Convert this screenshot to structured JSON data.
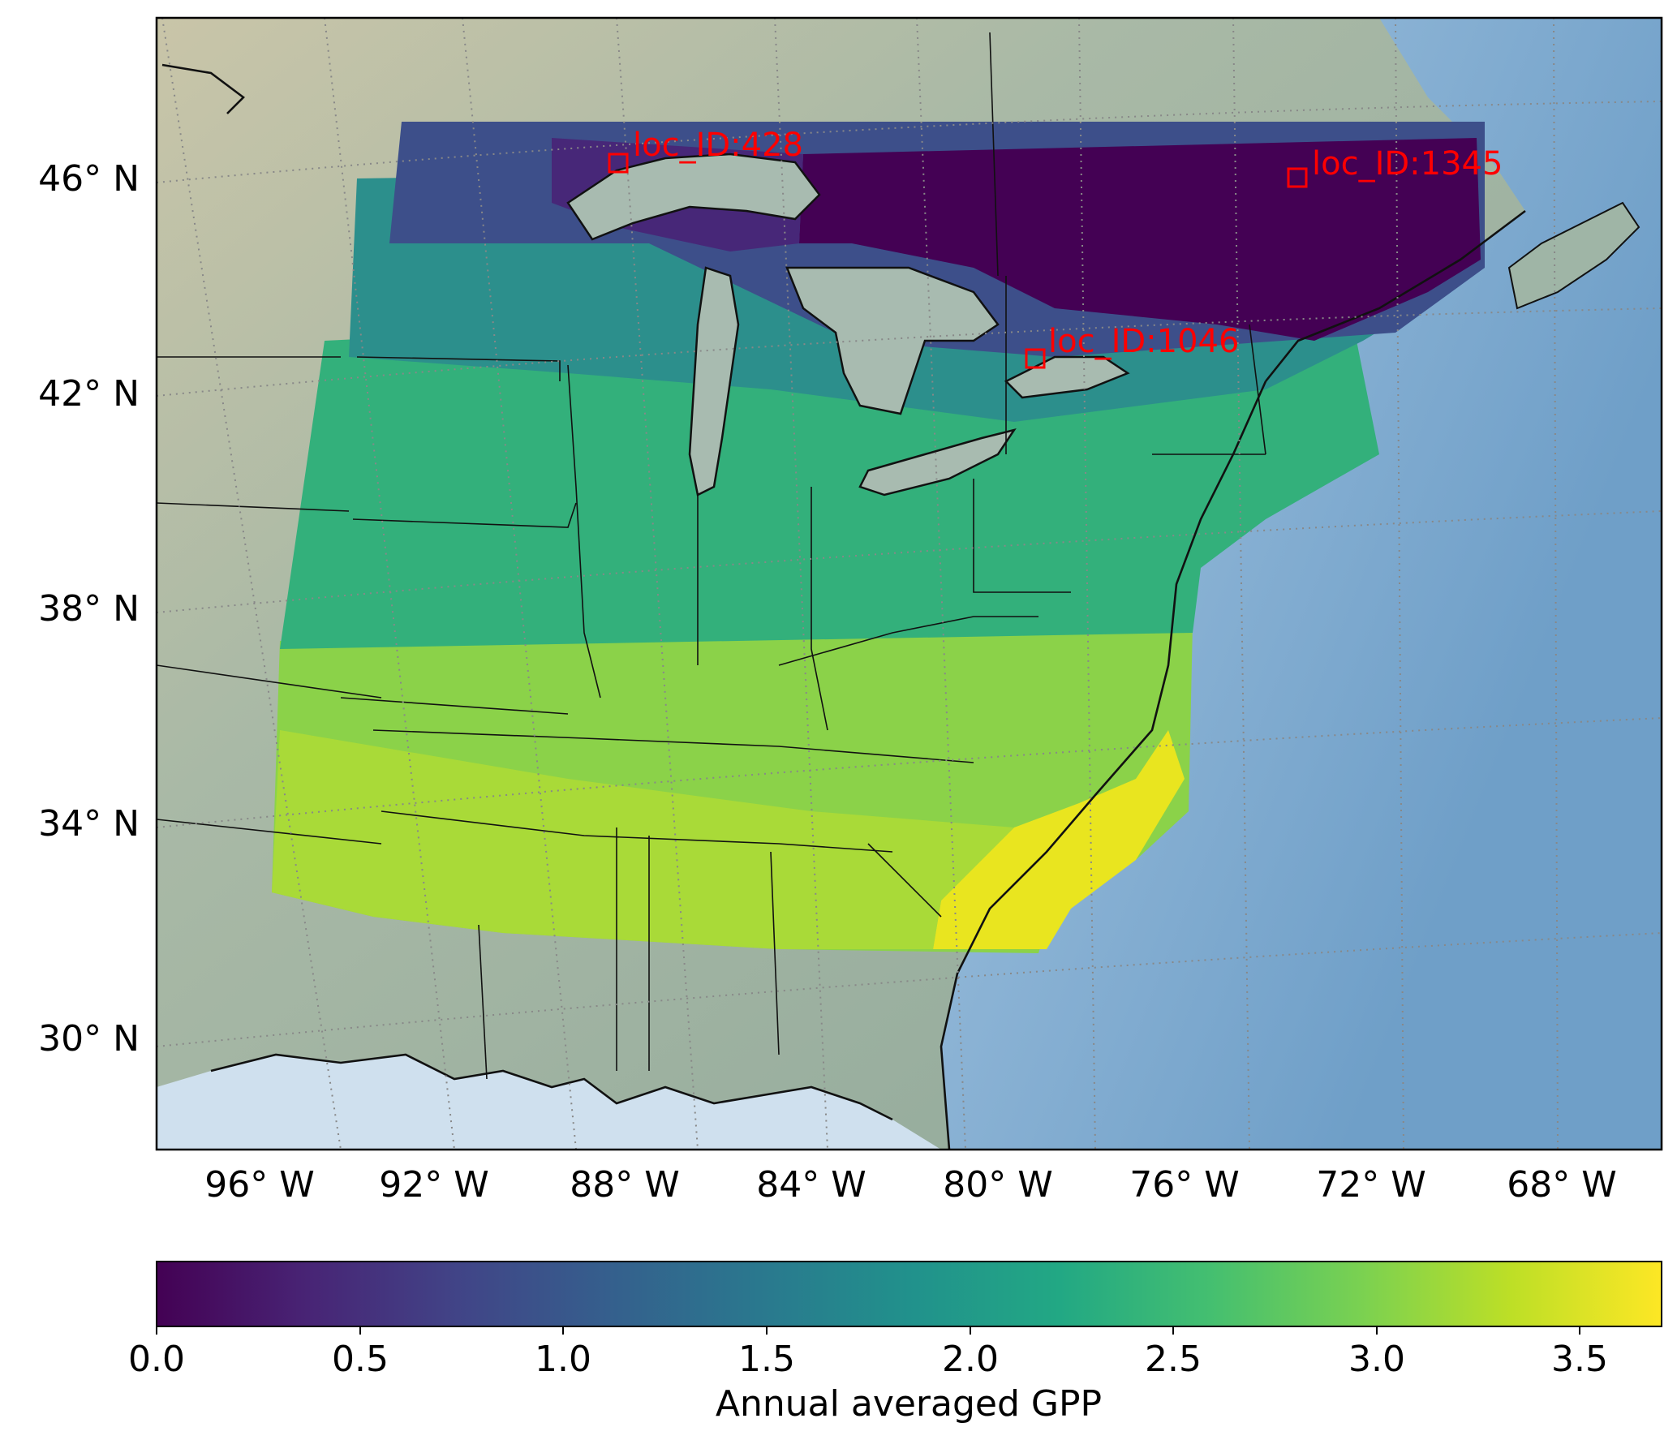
{
  "map": {
    "lat_labels": [
      "46° N",
      "42° N",
      "38° N",
      "34° N",
      "30° N"
    ],
    "lon_labels": [
      "96° W",
      "92° W",
      "88° W",
      "84° W",
      "80° W",
      "76° W",
      "72° W",
      "68° W"
    ],
    "locations": [
      {
        "label": "loc_ID:428"
      },
      {
        "label": "loc_ID:1345"
      },
      {
        "label": "loc_ID:1046"
      }
    ],
    "marker_color": "#ff0000",
    "land_color": "#9fb5a6",
    "ocean_color": "#7aa6cc"
  },
  "colorbar": {
    "label": "Annual averaged GPP",
    "colormap": "viridis",
    "range": [
      0.0,
      3.7
    ],
    "ticks": [
      "0.0",
      "0.5",
      "1.0",
      "1.5",
      "2.0",
      "2.5",
      "3.0",
      "3.5"
    ]
  }
}
